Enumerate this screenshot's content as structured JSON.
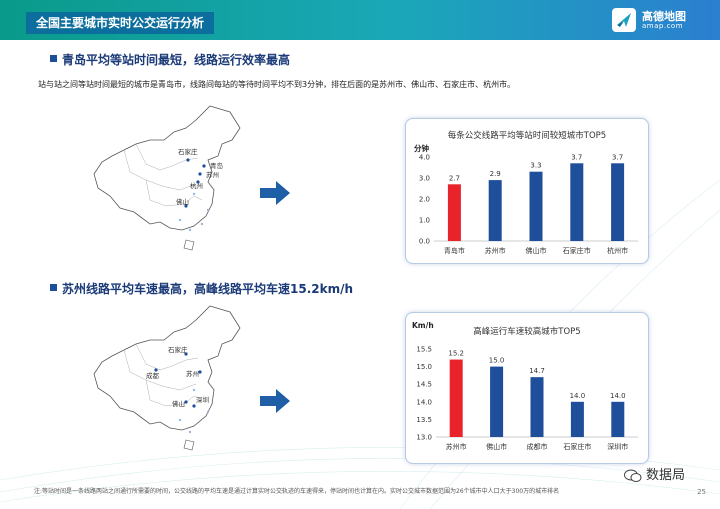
{
  "header": {
    "title": "全国主要城市实时公交运行分析",
    "logo_cn": "高德地图",
    "logo_en": "amap.com",
    "accent": "#0c6e9c"
  },
  "section1": {
    "title": "青岛平均等站时间最短，线路运行效率最高",
    "description": "站与站之间等站时间最短的城市是青岛市，线路间每站的等待时间平均不到3分钟，排在后面的是苏州市、佛山市、石家庄市、杭州市。",
    "map_labels": [
      "石家庄",
      "青岛",
      "苏州",
      "杭州",
      "佛山"
    ]
  },
  "section2": {
    "title": "苏州线路平均车速最高，高峰线路平均车速15.2km/h",
    "map_labels": [
      "石家庄",
      "成都",
      "苏州",
      "佛山",
      "深圳"
    ]
  },
  "chart_data": [
    {
      "type": "bar",
      "title": "每条公交线路平均等站时间较短城市TOP5",
      "ylabel": "分钟",
      "categories": [
        "青岛市",
        "苏州市",
        "佛山市",
        "石家庄市",
        "杭州市"
      ],
      "values": [
        2.7,
        2.9,
        3.3,
        3.7,
        3.7
      ],
      "value_labels": [
        "2.7",
        "2.9",
        "3.3",
        "3.7",
        "3.7"
      ],
      "ylim": [
        0,
        4
      ],
      "yticks": [
        "0.0",
        "1.0",
        "2.0",
        "3.0",
        "4.0"
      ],
      "highlight_index": 0,
      "colors": {
        "bar": "#1f4e9a",
        "highlight": "#e8242a"
      }
    },
    {
      "type": "bar",
      "title": "高峰运行车速较高城市TOP5",
      "ylabel": "Km/h",
      "categories": [
        "苏州市",
        "佛山市",
        "成都市",
        "石家庄市",
        "深圳市"
      ],
      "values": [
        15.2,
        15.0,
        14.7,
        14.0,
        14.0
      ],
      "value_labels": [
        "15.2",
        "15.0",
        "14.7",
        "14.0",
        "14.0"
      ],
      "ylim": [
        13,
        15.5
      ],
      "yticks": [
        "13.0",
        "13.5",
        "14.0",
        "14.5",
        "15.0",
        "15.5"
      ],
      "highlight_index": 0,
      "colors": {
        "bar": "#1f4e9a",
        "highlight": "#e8242a"
      }
    }
  ],
  "footer": {
    "note": "注:等站时间是一条线路两站之间通行所需要的时间，公交线路的平均车速是通过计算实时公交轨迹的车速得来，停站时间也计算在内。实时公交城市数据范围为26个城市中人口大于300万的城市排名",
    "page_number": "25",
    "wechat_label": "数据局"
  }
}
